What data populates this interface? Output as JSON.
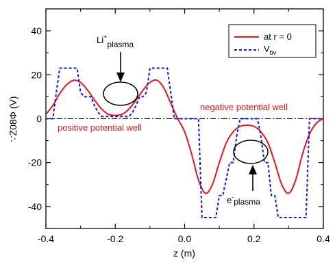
{
  "chart_data": {
    "type": "line",
    "xlabel": "z (m)",
    "ylabel": "Φ (V)",
    "ylabel_prefix": "∵Z08",
    "xlim": [
      -0.4,
      0.4
    ],
    "ylim": [
      -50,
      50
    ],
    "x_ticks": [
      -0.4,
      -0.2,
      0.0,
      0.2,
      0.4
    ],
    "x_tick_labels": [
      "-0.4",
      "-0.2",
      "0.0",
      "0.2",
      "0.4"
    ],
    "y_ticks": [
      -40,
      -20,
      0,
      20,
      40
    ],
    "y_tick_labels": [
      "-40",
      "-20",
      "0",
      "20",
      "40"
    ],
    "grid": false,
    "legend_position": "top-right",
    "colors": {
      "red": "#e8161b",
      "blue": "#1414e6",
      "black": "#000000"
    },
    "series": [
      {
        "name": "at r = 0",
        "color": "#e8161b",
        "style": "solid",
        "x": [
          -0.4,
          -0.38,
          -0.36,
          -0.34,
          -0.32,
          -0.3,
          -0.28,
          -0.26,
          -0.24,
          -0.22,
          -0.2,
          -0.18,
          -0.16,
          -0.14,
          -0.12,
          -0.1,
          -0.08,
          -0.06,
          -0.04,
          -0.02,
          0.0,
          0.02,
          0.04,
          0.06,
          0.08,
          0.1,
          0.12,
          0.14,
          0.16,
          0.18,
          0.2,
          0.22,
          0.24,
          0.26,
          0.28,
          0.3,
          0.32,
          0.34,
          0.36,
          0.38,
          0.4
        ],
        "y": [
          2,
          6,
          11.5,
          15.5,
          17.5,
          16.5,
          13,
          8.5,
          4.5,
          2,
          1.5,
          2,
          4.5,
          8.5,
          13,
          16.5,
          17.5,
          14,
          7,
          0,
          -6,
          -16,
          -28,
          -34,
          -30,
          -20,
          -11,
          -6,
          -3.5,
          -3,
          -3.5,
          -6,
          -11,
          -20,
          -30,
          -34,
          -28,
          -16,
          -7,
          -2,
          0
        ]
      },
      {
        "name": "V",
        "name_subscript": "bv",
        "color": "#1414e6",
        "style": "dashed",
        "x": [
          -0.4,
          -0.38,
          -0.37,
          -0.36,
          -0.31,
          -0.3,
          -0.29,
          -0.27,
          -0.26,
          -0.25,
          -0.24,
          -0.16,
          -0.15,
          -0.14,
          -0.13,
          -0.12,
          -0.11,
          -0.1,
          -0.05,
          -0.04,
          -0.03,
          0.04,
          0.05,
          0.06,
          0.09,
          0.1,
          0.11,
          0.13,
          0.14,
          0.15,
          0.16,
          0.21,
          0.22,
          0.23,
          0.24,
          0.25,
          0.26,
          0.27,
          0.28,
          0.29,
          0.34,
          0.35,
          0.36,
          0.4
        ],
        "y": [
          0,
          0,
          12,
          23,
          23,
          12,
          10,
          10,
          6,
          3,
          1,
          1,
          3,
          6,
          10,
          10,
          12,
          23,
          23,
          12,
          0,
          0,
          -45,
          -45,
          -45,
          -35,
          -35,
          -20,
          -20,
          -8,
          0,
          0,
          -8,
          -20,
          -20,
          -35,
          -35,
          -45,
          -45,
          -45,
          -45,
          -45,
          0,
          0
        ]
      }
    ],
    "reference_line": {
      "y": 0,
      "style": "dash-dot",
      "color": "#000000"
    },
    "annotations": {
      "li_plasma_main": "Li",
      "li_plasma_sup": "+",
      "li_plasma_sub": "plasma",
      "e_plasma_main": "e",
      "e_plasma_sup": "-",
      "e_plasma_sub": "plasma",
      "positive_well": "positive potential well",
      "negative_well": "negative potential well"
    }
  }
}
